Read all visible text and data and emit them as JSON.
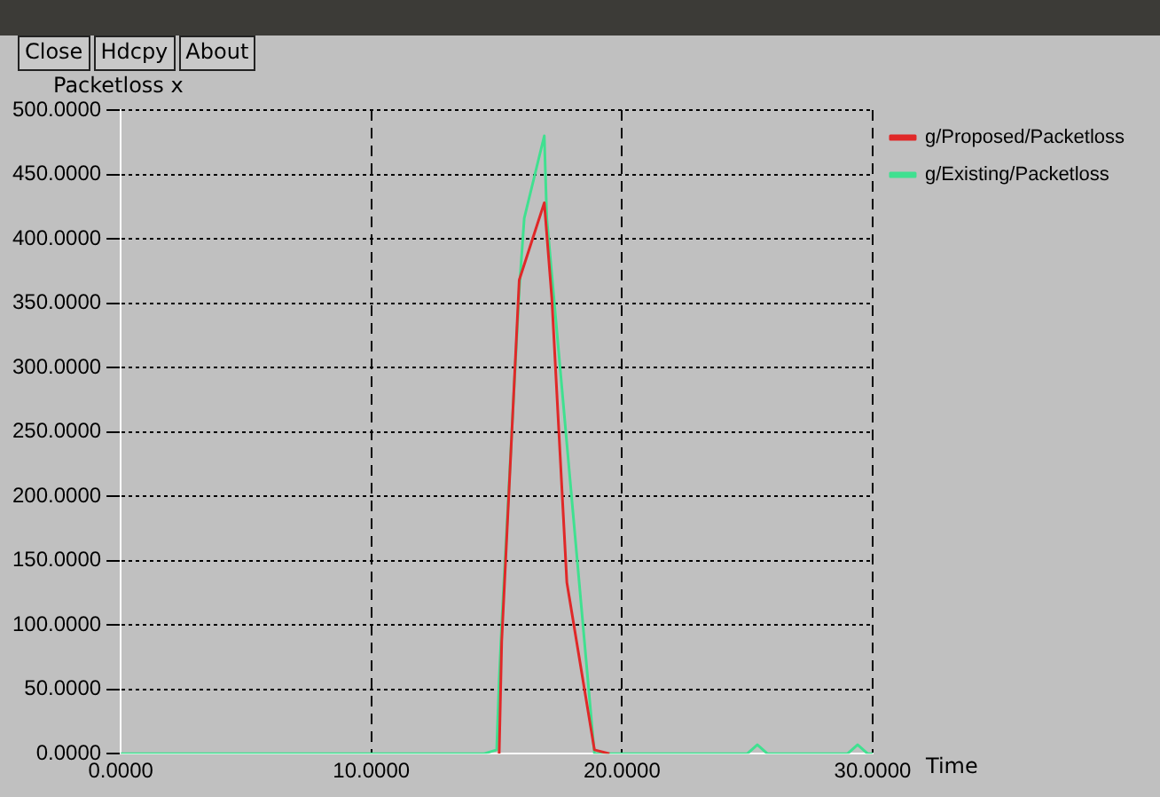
{
  "chart_data": {
    "type": "line",
    "xlabel": "Time",
    "ylabel": "Packetloss x",
    "annotations": [
      "Close",
      "Hdcpy",
      "About"
    ],
    "xlim": [
      0,
      30
    ],
    "xticks": [
      {
        "value": 0,
        "label": "0.0000"
      },
      {
        "value": 10,
        "label": "10.0000"
      },
      {
        "value": 20,
        "label": "20.0000"
      },
      {
        "value": 30,
        "label": "30.0000"
      }
    ],
    "ylim": [
      0,
      500
    ],
    "yticks": [
      {
        "value": 0,
        "label": "0.0000"
      },
      {
        "value": 50,
        "label": "50.0000"
      },
      {
        "value": 100,
        "label": "100.0000"
      },
      {
        "value": 150,
        "label": "150.0000"
      },
      {
        "value": 200,
        "label": "200.0000"
      },
      {
        "value": 250,
        "label": "250.0000"
      },
      {
        "value": 300,
        "label": "300.0000"
      },
      {
        "value": 350,
        "label": "350.0000"
      },
      {
        "value": 400,
        "label": "400.0000"
      },
      {
        "value": 450,
        "label": "450.0000"
      },
      {
        "value": 500,
        "label": "500.0000"
      }
    ],
    "grid": true,
    "legend": "top right",
    "marker": "none",
    "series": [
      {
        "name": "g/Proposed/Packetloss",
        "color": "#e02828",
        "x": [
          15.1,
          15.2,
          15.9,
          16.9,
          17.2,
          17.8,
          18.9,
          19.5
        ],
        "values": [
          0,
          87,
          368,
          428,
          354,
          133,
          3,
          0
        ]
      },
      {
        "name": "g/Existing/Packetloss",
        "color": "#40e090",
        "x": [
          0,
          14.5,
          15,
          15.1,
          15.2,
          15.9,
          16.1,
          16.9,
          17,
          18.9,
          19.5,
          20,
          25,
          25.4,
          25.8,
          29,
          29.4,
          29.8,
          30
        ],
        "values": [
          0,
          0,
          3,
          58,
          100,
          360,
          416,
          480,
          416,
          0,
          0,
          0,
          0,
          7,
          0,
          0,
          7,
          0,
          0
        ]
      }
    ]
  }
}
